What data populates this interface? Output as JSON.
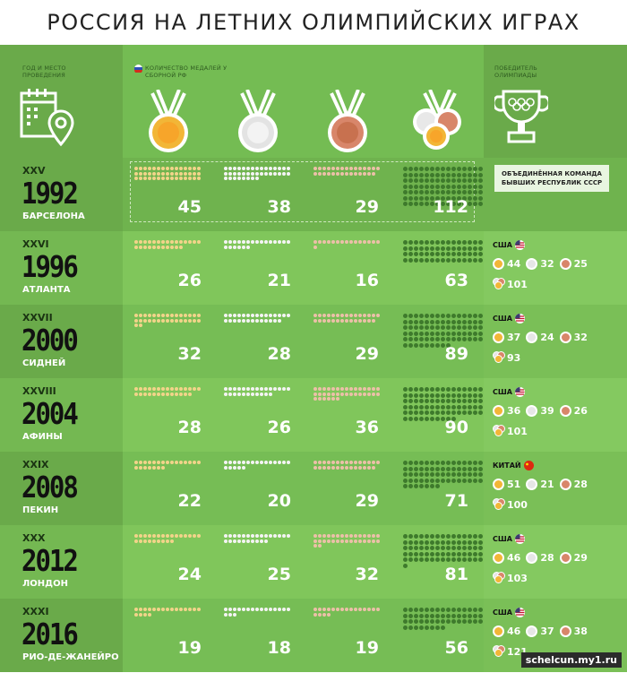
{
  "title": "РОССИЯ НА ЛЕТНИХ ОЛИМПИЙСКИХ ИГРАХ",
  "header": {
    "left_label": "ГОД И МЕСТО ПРОВЕДЕНИЯ",
    "medals_label": "КОЛИЧЕСТВО МЕДАЛЕЙ У СБОРНОЙ РФ",
    "winner_label": "ПОБЕДИТЕЛЬ ОЛИМПИАДЫ"
  },
  "colors": {
    "gold": "#f2b637",
    "silver": "#e6e6e6",
    "bronze": "#d8866a",
    "total": "#3e7a2c",
    "gold_dot": "#f2d48a",
    "silver_dot": "#f4f4f4",
    "bronze_dot": "#ecc0a8"
  },
  "games": [
    {
      "roman": "XXV",
      "year": "1992",
      "city": "БАРСЕЛОНА",
      "gold": "45",
      "silver": "38",
      "bronze": "29",
      "total": "112",
      "winner": {
        "name_line1": "ОБЪЕДИНЁННАЯ КОМАНДА",
        "name_line2": "БЫВШИХ РЕСПУБЛИК СССР"
      }
    },
    {
      "roman": "XXVI",
      "year": "1996",
      "city": "АТЛАНТА",
      "gold": "26",
      "silver": "21",
      "bronze": "16",
      "total": "63",
      "winner": {
        "name": "США",
        "flag": "usa",
        "gold": "44",
        "silver": "32",
        "bronze": "25",
        "total": "101"
      }
    },
    {
      "roman": "XXVII",
      "year": "2000",
      "city": "СИДНЕЙ",
      "gold": "32",
      "silver": "28",
      "bronze": "29",
      "total": "89",
      "winner": {
        "name": "США",
        "flag": "usa",
        "gold": "37",
        "silver": "24",
        "bronze": "32",
        "total": "93"
      }
    },
    {
      "roman": "XXVIII",
      "year": "2004",
      "city": "АФИНЫ",
      "gold": "28",
      "silver": "26",
      "bronze": "36",
      "total": "90",
      "winner": {
        "name": "США",
        "flag": "usa",
        "gold": "36",
        "silver": "39",
        "bronze": "26",
        "total": "101"
      }
    },
    {
      "roman": "XXIX",
      "year": "2008",
      "city": "ПЕКИН",
      "gold": "22",
      "silver": "20",
      "bronze": "29",
      "total": "71",
      "winner": {
        "name": "КИТАЙ",
        "flag": "china",
        "gold": "51",
        "silver": "21",
        "bronze": "28",
        "total": "100"
      }
    },
    {
      "roman": "XXX",
      "year": "2012",
      "city": "ЛОНДОН",
      "gold": "24",
      "silver": "25",
      "bronze": "32",
      "total": "81",
      "winner": {
        "name": "США",
        "flag": "usa",
        "gold": "46",
        "silver": "28",
        "bronze": "29",
        "total": "103"
      }
    },
    {
      "roman": "XXXI",
      "year": "2016",
      "city": "РИО-ДЕ-ЖАНЕЙРО",
      "gold": "19",
      "silver": "18",
      "bronze": "19",
      "total": "56",
      "winner": {
        "name": "США",
        "flag": "usa",
        "gold": "46",
        "silver": "37",
        "bronze": "38",
        "total": "121"
      }
    }
  ],
  "watermark": "schelcun.my1.ru"
}
